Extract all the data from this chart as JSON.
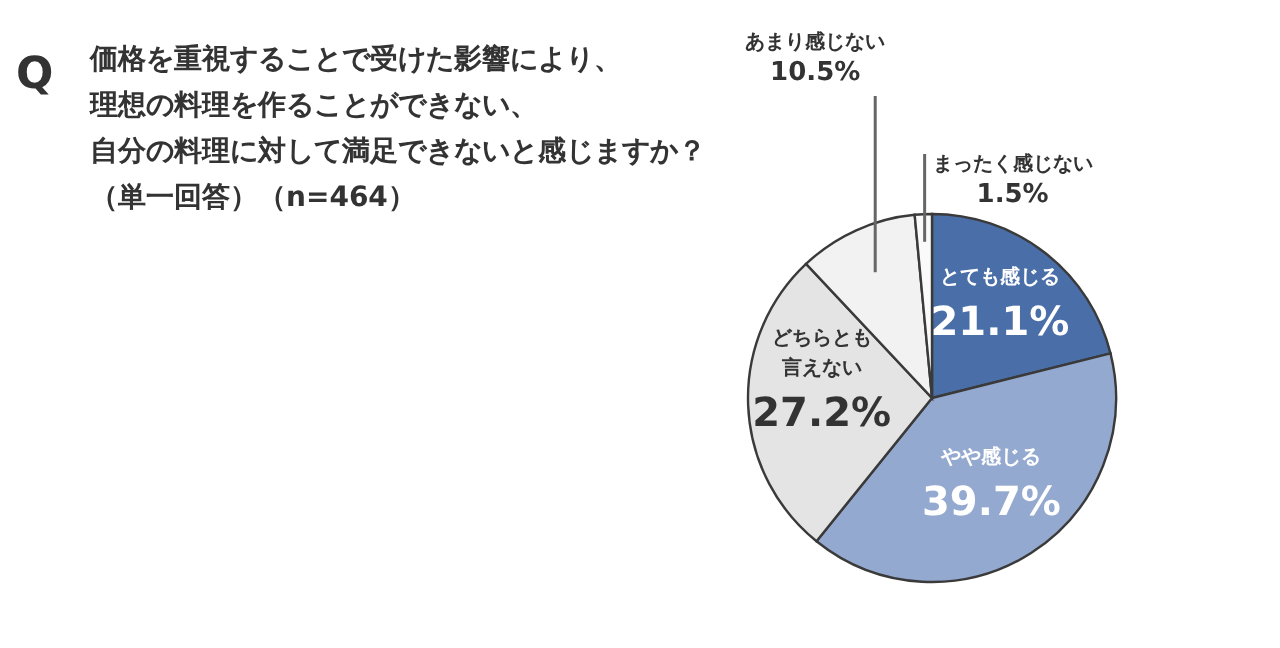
{
  "chart_data": {
    "type": "pie",
    "title": "価格を重視することで受けた影響により、理想の料理を作ることができない、自分の料理に対して満足できないと感じますか？",
    "subtitle": "（単一回答）（n=464）",
    "annotations": [
      "Q"
    ],
    "categories": [
      "とても感じる",
      "やや感じる",
      "どちらとも言えない",
      "あまり感じない",
      "まったく感じない"
    ],
    "values": [
      21.1,
      39.7,
      27.2,
      10.5,
      1.5
    ],
    "value_labels": [
      "21.1%",
      "39.7%",
      "27.2%",
      "10.5%",
      "1.5%"
    ],
    "colors": [
      "#4a6ea8",
      "#94a9cf",
      "#e4e4e4",
      "#f2f2f2",
      "#fafafa"
    ]
  }
}
